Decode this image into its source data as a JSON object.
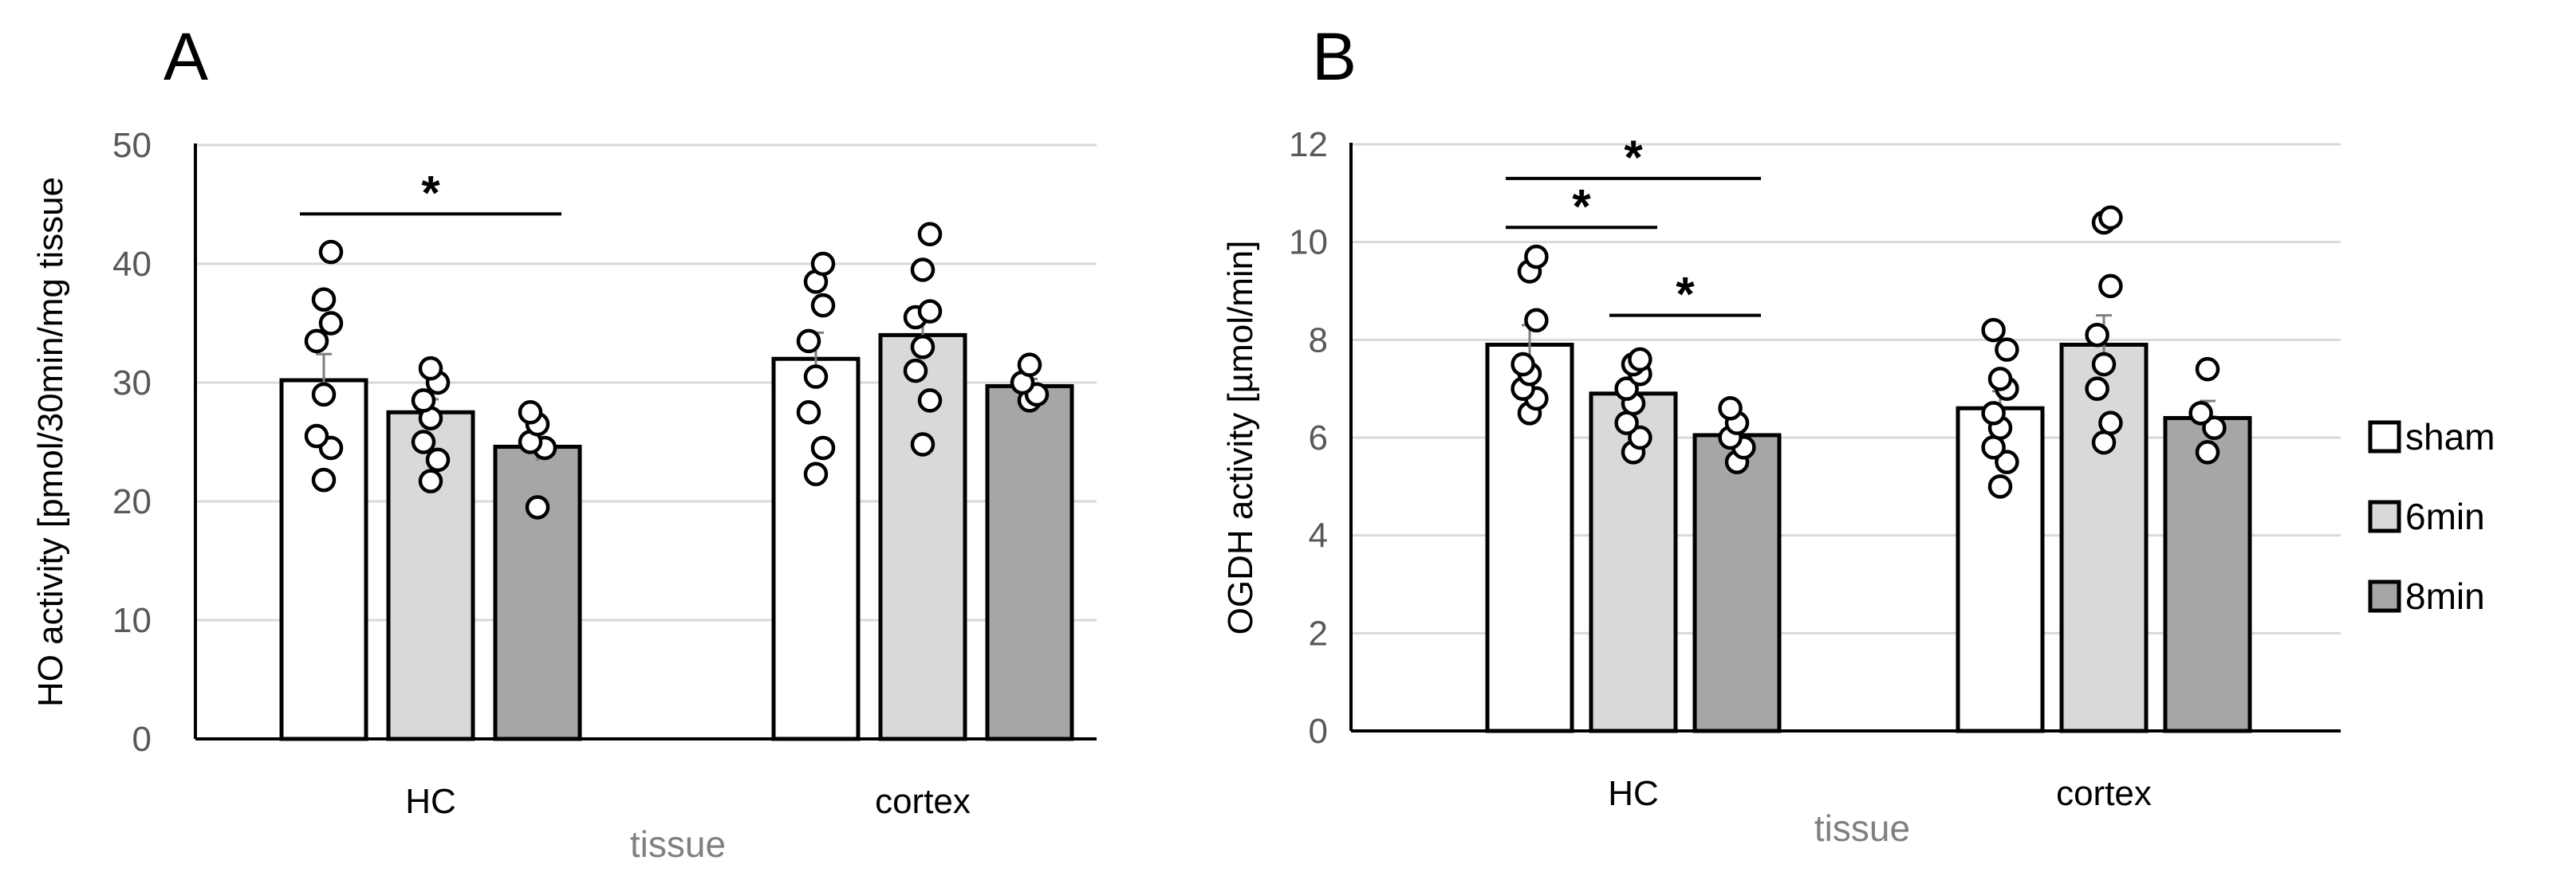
{
  "chart_data": [
    {
      "panel": "A",
      "type": "bar",
      "ylabel": "HO activity [pmol/30min/mg tissue",
      "xlabel": "tissue",
      "ylim": [
        0,
        50
      ],
      "yticks": [
        0,
        10,
        20,
        30,
        40,
        50
      ],
      "categories": [
        "HC",
        "cortex"
      ],
      "grid": true,
      "series": [
        {
          "name": "sham",
          "color": "#ffffff",
          "values": [
            30.2,
            32.0
          ],
          "errors": [
            2.2,
            2.2
          ],
          "points": [
            [
              21.8,
              24.5,
              25.5,
              29.0,
              33.5,
              35.0,
              37.0,
              41.0
            ],
            [
              22.3,
              24.5,
              27.5,
              30.5,
              33.5,
              36.5,
              38.5,
              40.0
            ]
          ]
        },
        {
          "name": "6min",
          "color": "#d9d9d9",
          "values": [
            27.5,
            34.0
          ],
          "errors": [
            1.1,
            1.8
          ],
          "points": [
            [
              21.7,
              23.5,
              25.0,
              27.0,
              28.5,
              30.0,
              31.2
            ],
            [
              24.8,
              28.5,
              31.0,
              33.0,
              35.5,
              36.0,
              39.5,
              42.5
            ]
          ]
        },
        {
          "name": "8min",
          "color": "#a6a6a6",
          "values": [
            24.6,
            29.7
          ],
          "errors": [
            1.2,
            0.6
          ],
          "points": [
            [
              19.5,
              24.5,
              25.0,
              26.5,
              27.5
            ],
            [
              28.5,
              29.0,
              30.0,
              31.5
            ]
          ]
        }
      ],
      "significance": [
        {
          "category": "HC",
          "from_series": 0,
          "to_series": 2,
          "y": 44.2,
          "label": "*"
        }
      ]
    },
    {
      "panel": "B",
      "type": "bar",
      "ylabel": "OGDH activity [µmol/min]",
      "xlabel": "tissue",
      "ylim": [
        0,
        12
      ],
      "yticks": [
        0,
        2,
        4,
        6,
        8,
        10,
        12
      ],
      "categories": [
        "HC",
        "cortex"
      ],
      "grid": true,
      "series": [
        {
          "name": "sham",
          "color": "#ffffff",
          "values": [
            7.9,
            6.6
          ],
          "errors": [
            0.4,
            0.35
          ],
          "points": [
            [
              6.5,
              6.8,
              7.0,
              7.3,
              7.5,
              8.4,
              9.4,
              9.7
            ],
            [
              5.0,
              5.5,
              5.8,
              6.2,
              6.5,
              7.0,
              7.2,
              7.8,
              8.2
            ]
          ]
        },
        {
          "name": "6min",
          "color": "#d9d9d9",
          "values": [
            6.9,
            7.9
          ],
          "errors": [
            0.25,
            0.6
          ],
          "points": [
            [
              5.7,
              6.0,
              6.3,
              6.7,
              7.0,
              7.3,
              7.5,
              7.6
            ],
            [
              5.9,
              6.3,
              7.0,
              7.5,
              8.1,
              9.1,
              10.4,
              10.5
            ]
          ]
        },
        {
          "name": "8min",
          "color": "#a6a6a6",
          "values": [
            6.05,
            6.4
          ],
          "errors": [
            0.15,
            0.35
          ],
          "points": [
            [
              5.5,
              5.8,
              6.0,
              6.3,
              6.6
            ],
            [
              5.7,
              6.2,
              6.5,
              7.4
            ]
          ]
        }
      ],
      "significance": [
        {
          "category": "HC",
          "from_series": 0,
          "to_series": 2,
          "y": 11.3,
          "label": "*"
        },
        {
          "category": "HC",
          "from_series": 0,
          "to_series": 1,
          "y": 10.3,
          "label": "*"
        },
        {
          "category": "HC",
          "from_series": 1,
          "to_series": 2,
          "y": 8.5,
          "label": "*"
        }
      ]
    }
  ],
  "legend": [
    {
      "label": "sham",
      "color": "#ffffff"
    },
    {
      "label": "6min",
      "color": "#d9d9d9"
    },
    {
      "label": "8min",
      "color": "#a6a6a6"
    }
  ]
}
